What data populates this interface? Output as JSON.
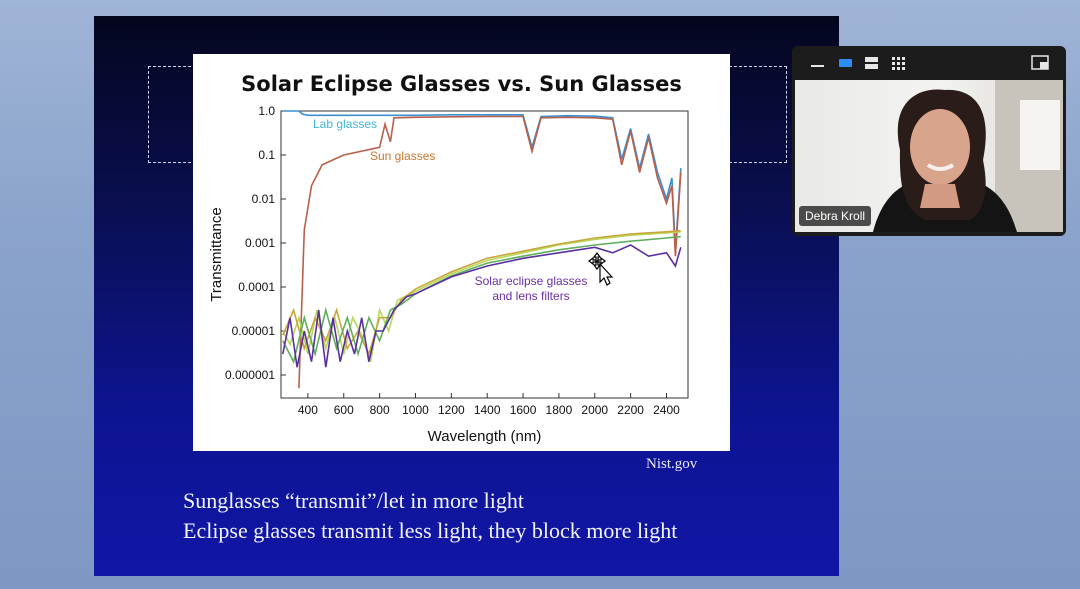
{
  "slide": {
    "figure_title": "Solar Eclipse Glasses vs. Sun Glasses",
    "source": "Nist.gov",
    "caption_lines": [
      "Sunglasses “transmit”/let in more light",
      "Eclipse glasses transmit less light, they block more light"
    ]
  },
  "chart_data": {
    "type": "line",
    "title": "Solar Eclipse Glasses vs. Sun Glasses",
    "xlabel": "Wavelength (nm)",
    "ylabel": "Transmittance",
    "xlim": [
      250,
      2520
    ],
    "ylim": [
      3e-07,
      1.0
    ],
    "yscale": "log",
    "x_ticks": [
      400,
      600,
      800,
      1000,
      1200,
      1400,
      1600,
      1800,
      2000,
      2200,
      2400
    ],
    "y_ticks": [
      {
        "value": 1.0,
        "label": "1.0"
      },
      {
        "value": 0.1,
        "label": "0.1"
      },
      {
        "value": 0.01,
        "label": "0.01"
      },
      {
        "value": 0.001,
        "label": "0.001"
      },
      {
        "value": 0.0001,
        "label": "0.0001"
      },
      {
        "value": 1e-05,
        "label": "0.00001"
      },
      {
        "value": 1e-06,
        "label": "0.000001"
      }
    ],
    "annotations": [
      {
        "text": "Lab glasses",
        "color": "#3cb7d8"
      },
      {
        "text": "Sun glasses",
        "color": "#c8772d"
      },
      {
        "text": "Solar eclipse glasses",
        "color": "#6a2fa8"
      },
      {
        "text": "and lens filters",
        "color": "#6a2fa8"
      }
    ],
    "series": [
      {
        "color": "#3b8fd0",
        "points": [
          [
            260,
            1.0
          ],
          [
            350,
            1.0
          ],
          [
            370,
            0.85
          ],
          [
            400,
            0.8
          ],
          [
            500,
            0.8
          ],
          [
            800,
            0.8
          ],
          [
            1000,
            0.8
          ],
          [
            1200,
            0.82
          ],
          [
            1400,
            0.82
          ],
          [
            1600,
            0.82
          ],
          [
            1650,
            0.15
          ],
          [
            1700,
            0.75
          ],
          [
            1850,
            0.78
          ],
          [
            2000,
            0.76
          ],
          [
            2100,
            0.7
          ],
          [
            2150,
            0.08
          ],
          [
            2200,
            0.4
          ],
          [
            2250,
            0.05
          ],
          [
            2300,
            0.3
          ],
          [
            2350,
            0.04
          ],
          [
            2400,
            0.01
          ],
          [
            2430,
            0.03
          ],
          [
            2450,
            0.0007
          ],
          [
            2480,
            0.05
          ]
        ]
      },
      {
        "color": "#b8604a",
        "points": [
          [
            350,
            5e-07
          ],
          [
            380,
            0.002
          ],
          [
            420,
            0.02
          ],
          [
            480,
            0.06
          ],
          [
            600,
            0.1
          ],
          [
            800,
            0.15
          ],
          [
            830,
            0.5
          ],
          [
            860,
            0.2
          ],
          [
            880,
            0.7
          ],
          [
            1000,
            0.72
          ],
          [
            1200,
            0.74
          ],
          [
            1400,
            0.75
          ],
          [
            1600,
            0.75
          ],
          [
            1650,
            0.12
          ],
          [
            1700,
            0.7
          ],
          [
            1850,
            0.72
          ],
          [
            2000,
            0.7
          ],
          [
            2100,
            0.65
          ],
          [
            2150,
            0.06
          ],
          [
            2200,
            0.35
          ],
          [
            2250,
            0.04
          ],
          [
            2300,
            0.25
          ],
          [
            2350,
            0.03
          ],
          [
            2400,
            0.008
          ],
          [
            2430,
            0.02
          ],
          [
            2450,
            0.0005
          ],
          [
            2480,
            0.04
          ]
        ]
      },
      {
        "color": "#b7d85a",
        "points": [
          [
            260,
            1e-05
          ],
          [
            300,
            5e-06
          ],
          [
            350,
            2e-05
          ],
          [
            400,
            3e-06
          ],
          [
            450,
            3e-05
          ],
          [
            500,
            4e-06
          ],
          [
            550,
            2e-05
          ],
          [
            600,
            3e-06
          ],
          [
            650,
            2e-05
          ],
          [
            700,
            8e-06
          ],
          [
            750,
            2e-06
          ],
          [
            800,
            3e-05
          ],
          [
            850,
            1e-05
          ],
          [
            900,
            5e-05
          ],
          [
            1000,
            8e-05
          ],
          [
            1200,
            0.0002
          ],
          [
            1400,
            0.0004
          ],
          [
            1600,
            0.0006
          ],
          [
            1800,
            0.0009
          ],
          [
            2000,
            0.0012
          ],
          [
            2200,
            0.0015
          ],
          [
            2400,
            0.0017
          ],
          [
            2480,
            0.0018
          ]
        ]
      },
      {
        "color": "#c8a73a",
        "points": [
          [
            260,
            8e-06
          ],
          [
            320,
            3e-05
          ],
          [
            380,
            4e-06
          ],
          [
            440,
            2e-05
          ],
          [
            500,
            6e-06
          ],
          [
            560,
            3e-05
          ],
          [
            620,
            4e-06
          ],
          [
            680,
            1e-05
          ],
          [
            740,
            3e-06
          ],
          [
            800,
            2e-05
          ],
          [
            860,
            2e-05
          ],
          [
            920,
            5e-05
          ],
          [
            1000,
            9e-05
          ],
          [
            1200,
            0.00022
          ],
          [
            1400,
            0.00045
          ],
          [
            1600,
            0.00065
          ],
          [
            1800,
            0.00095
          ],
          [
            2000,
            0.0013
          ],
          [
            2200,
            0.0016
          ],
          [
            2400,
            0.0018
          ],
          [
            2480,
            0.0019
          ]
        ]
      },
      {
        "color": "#5fae5c",
        "points": [
          [
            260,
            6e-06
          ],
          [
            320,
            2e-06
          ],
          [
            380,
            2e-05
          ],
          [
            440,
            3e-06
          ],
          [
            500,
            3e-05
          ],
          [
            560,
            4e-06
          ],
          [
            620,
            2e-05
          ],
          [
            680,
            3e-06
          ],
          [
            740,
            2e-05
          ],
          [
            800,
            6e-06
          ],
          [
            860,
            3e-05
          ],
          [
            920,
            4e-05
          ],
          [
            1000,
            7e-05
          ],
          [
            1200,
            0.00018
          ],
          [
            1400,
            0.00035
          ],
          [
            1600,
            0.0005
          ],
          [
            1800,
            0.0007
          ],
          [
            2000,
            0.0009
          ],
          [
            2200,
            0.0011
          ],
          [
            2400,
            0.0013
          ],
          [
            2480,
            0.0014
          ]
        ]
      },
      {
        "color": "#5a2fa0",
        "points": [
          [
            260,
            3e-06
          ],
          [
            300,
            2e-05
          ],
          [
            340,
            1.5e-06
          ],
          [
            380,
            1e-05
          ],
          [
            420,
            2e-06
          ],
          [
            460,
            3e-05
          ],
          [
            500,
            1.5e-06
          ],
          [
            540,
            2e-05
          ],
          [
            580,
            2e-06
          ],
          [
            620,
            1e-05
          ],
          [
            660,
            3e-06
          ],
          [
            700,
            2e-05
          ],
          [
            740,
            2e-06
          ],
          [
            780,
            1e-05
          ],
          [
            820,
            1e-05
          ],
          [
            880,
            3e-05
          ],
          [
            950,
            6e-05
          ],
          [
            1000,
            7e-05
          ],
          [
            1200,
            0.00017
          ],
          [
            1400,
            0.0003
          ],
          [
            1600,
            0.00045
          ],
          [
            1800,
            0.0006
          ],
          [
            2000,
            0.0008
          ],
          [
            2100,
            0.0006
          ],
          [
            2200,
            0.0009
          ],
          [
            2300,
            0.0005
          ],
          [
            2400,
            0.0006
          ],
          [
            2450,
            0.0003
          ],
          [
            2480,
            0.0008
          ]
        ]
      }
    ]
  },
  "video_panel": {
    "participant_name": "Debra Kroll",
    "toolbar_icons": [
      "minimize-icon",
      "speaker-view-icon",
      "side-by-side-icon",
      "gallery-view-icon",
      "collapse-icon"
    ]
  }
}
